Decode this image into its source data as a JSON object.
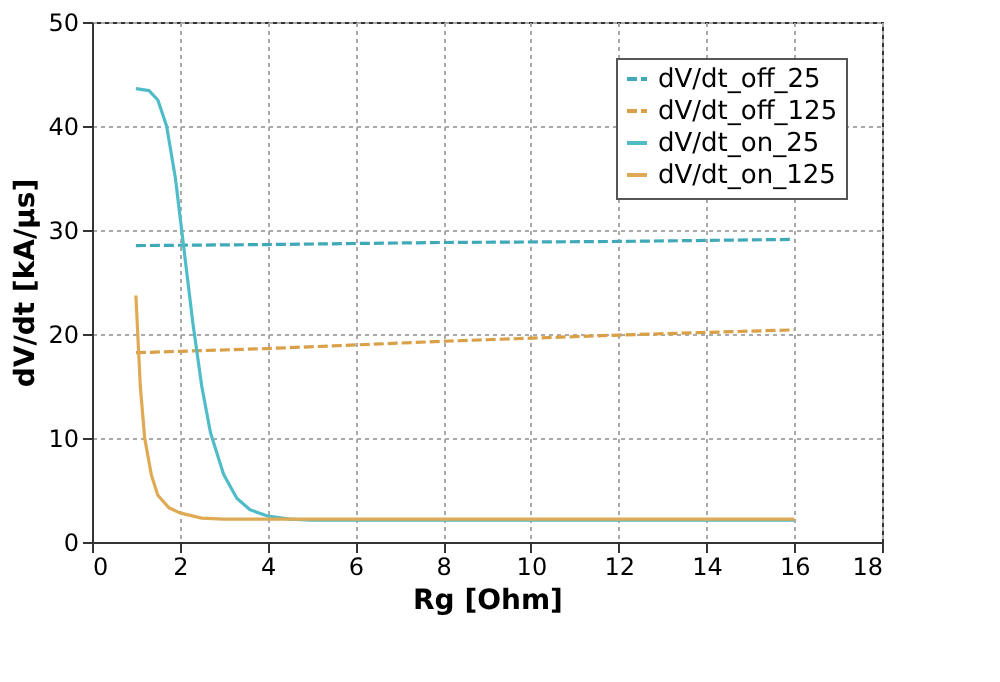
{
  "chart_data": {
    "type": "line",
    "xlabel": "Rg [Ohm]",
    "ylabel": "dV/dt [kA/µs]",
    "xlim": [
      0,
      18
    ],
    "ylim": [
      0,
      50
    ],
    "xticks": [
      0,
      2,
      4,
      6,
      8,
      10,
      12,
      14,
      16,
      18
    ],
    "yticks": [
      0,
      10,
      20,
      30,
      40,
      50
    ],
    "grid": true,
    "legend": "top right",
    "marker": "none",
    "series": [
      {
        "name": "dV/dt_off_25",
        "color": "#3fa9b8",
        "line_style": "dashed",
        "x": [
          1,
          4,
          8,
          12,
          16
        ],
        "values": [
          28.5,
          28.6,
          28.8,
          28.9,
          29.1
        ]
      },
      {
        "name": "dV/dt_off_125",
        "color": "#d9a048",
        "line_style": "dashed",
        "x": [
          1,
          4,
          8,
          12,
          16
        ],
        "values": [
          18.2,
          18.6,
          19.3,
          19.9,
          20.4
        ]
      },
      {
        "name": "dV/dt_on_25",
        "color": "#4fbcc8",
        "line_style": "solid",
        "x": [
          1,
          1.3,
          1.5,
          1.7,
          1.9,
          2.1,
          2.3,
          2.5,
          2.7,
          3.0,
          3.3,
          3.6,
          4,
          4.5,
          5,
          6,
          16
        ],
        "values": [
          43.6,
          43.4,
          42.5,
          40,
          35,
          28,
          21,
          15,
          10.5,
          6.5,
          4.2,
          3.1,
          2.5,
          2.2,
          2.1,
          2.1,
          2.1
        ]
      },
      {
        "name": "dV/dt_on_125",
        "color": "#e0aa55",
        "line_style": "solid",
        "x": [
          1,
          1.1,
          1.2,
          1.35,
          1.5,
          1.75,
          2,
          2.5,
          3,
          16
        ],
        "values": [
          23.7,
          15,
          10,
          6.5,
          4.5,
          3.3,
          2.8,
          2.3,
          2.2,
          2.2
        ]
      }
    ]
  }
}
